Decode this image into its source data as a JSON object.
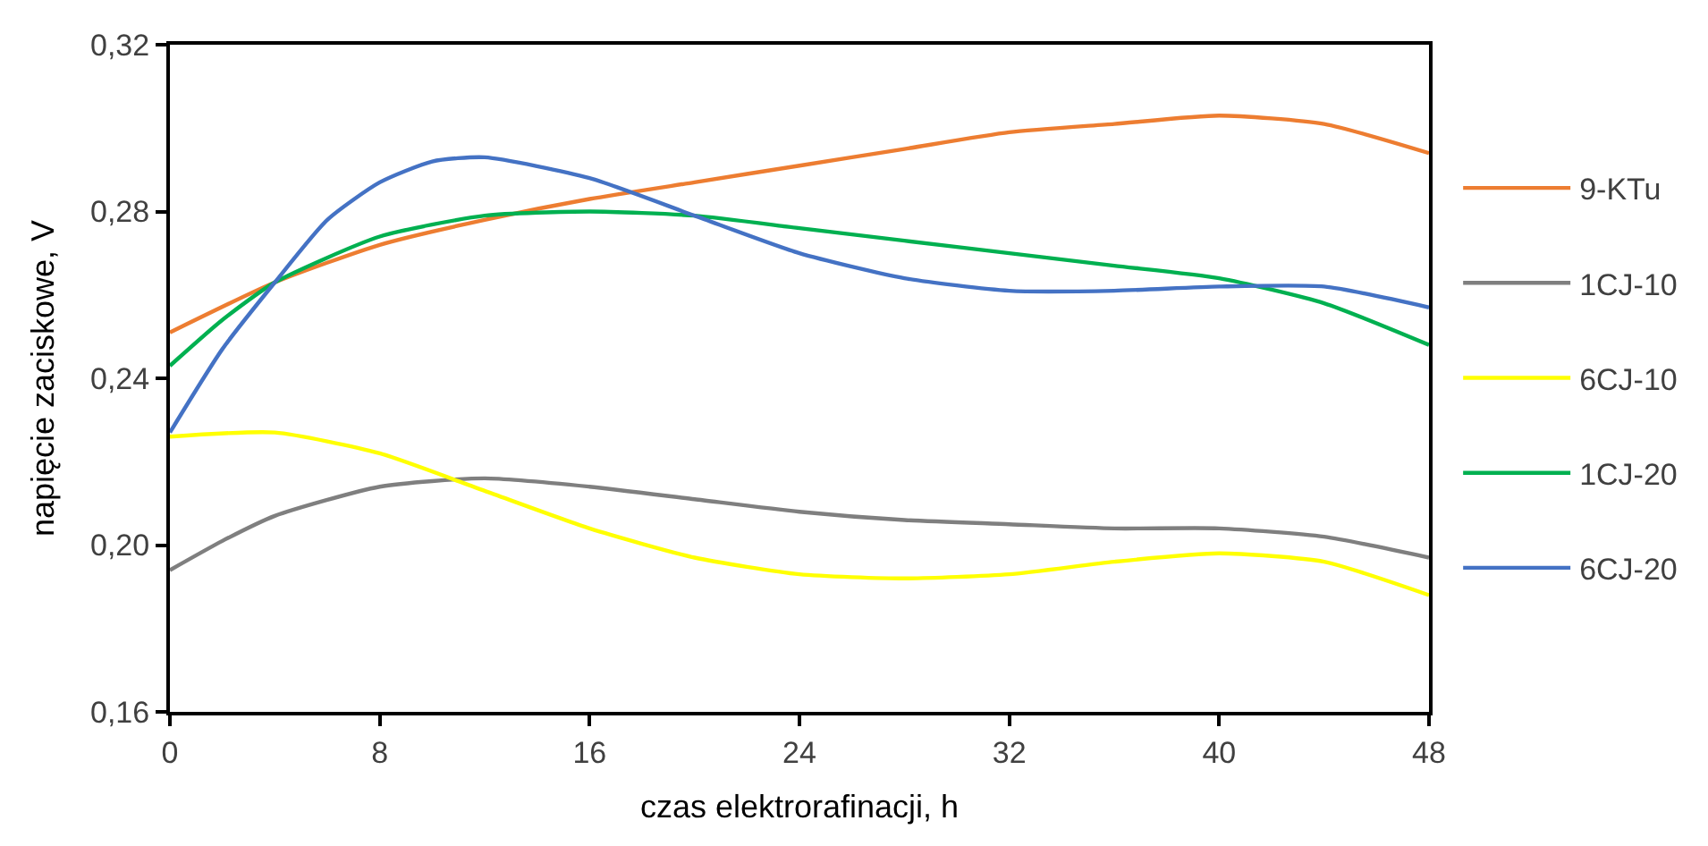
{
  "chart_data": {
    "type": "line",
    "xlabel": "czas elektrorafinacji, h",
    "ylabel": "napięcie zaciskowe, V",
    "xlim": [
      0,
      48
    ],
    "xticks": [
      0,
      8,
      16,
      24,
      32,
      40,
      48
    ],
    "ylim": [
      0.16,
      0.32
    ],
    "yticks": [
      {
        "value": 0.16,
        "label": "0,16"
      },
      {
        "value": 0.2,
        "label": "0,20"
      },
      {
        "value": 0.24,
        "label": "0,24"
      },
      {
        "value": 0.28,
        "label": "0,28"
      },
      {
        "value": 0.32,
        "label": "0,32"
      }
    ],
    "legend": "right",
    "marker": "none",
    "line_style": "solid",
    "series": [
      {
        "name": "9-KTu",
        "color": "#ed7d31",
        "x": [
          0,
          4,
          8,
          12,
          16,
          20,
          24,
          28,
          32,
          36,
          40,
          44,
          48
        ],
        "values": [
          0.251,
          0.263,
          0.272,
          0.278,
          0.283,
          0.287,
          0.291,
          0.295,
          0.299,
          0.301,
          0.303,
          0.301,
          0.294
        ]
      },
      {
        "name": "1CJ-10",
        "color": "#7f7f7f",
        "x": [
          0,
          2,
          4,
          8,
          12,
          16,
          20,
          24,
          28,
          32,
          36,
          40,
          44,
          48
        ],
        "values": [
          0.194,
          0.201,
          0.207,
          0.214,
          0.216,
          0.214,
          0.211,
          0.208,
          0.206,
          0.205,
          0.204,
          0.204,
          0.202,
          0.197
        ]
      },
      {
        "name": "6CJ-10",
        "color": "#ffff00",
        "x": [
          0,
          4,
          8,
          12,
          16,
          20,
          24,
          28,
          32,
          36,
          40,
          44,
          48
        ],
        "values": [
          0.226,
          0.227,
          0.222,
          0.213,
          0.204,
          0.197,
          0.193,
          0.192,
          0.193,
          0.196,
          0.198,
          0.196,
          0.188
        ]
      },
      {
        "name": "1CJ-20",
        "color": "#00b050",
        "x": [
          0,
          2,
          4,
          8,
          12,
          16,
          20,
          24,
          28,
          32,
          36,
          40,
          44,
          48
        ],
        "values": [
          0.243,
          0.254,
          0.263,
          0.274,
          0.279,
          0.28,
          0.279,
          0.276,
          0.273,
          0.27,
          0.267,
          0.264,
          0.258,
          0.248
        ]
      },
      {
        "name": "6CJ-20",
        "color": "#4472c4",
        "x": [
          0,
          2,
          4,
          6,
          8,
          10,
          12,
          16,
          20,
          24,
          28,
          32,
          36,
          40,
          44,
          48
        ],
        "values": [
          0.227,
          0.247,
          0.263,
          0.278,
          0.287,
          0.292,
          0.293,
          0.288,
          0.279,
          0.27,
          0.264,
          0.261,
          0.261,
          0.262,
          0.262,
          0.257
        ]
      }
    ]
  }
}
